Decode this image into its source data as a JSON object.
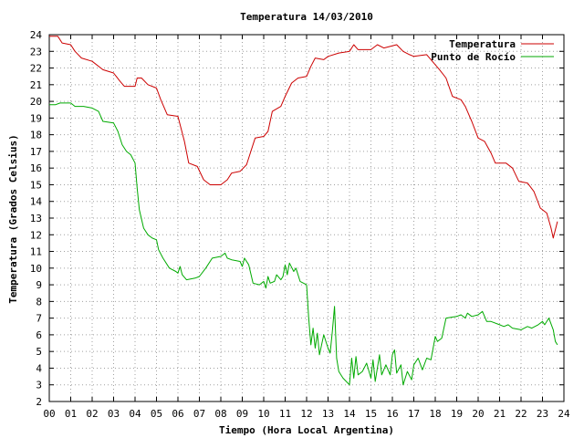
{
  "chart_data": {
    "type": "line",
    "title": "Temperatura 14/03/2010",
    "xlabel": "Tiempo (Hora Local Argentina)",
    "ylabel": "Temperatura (Grados Celsius)",
    "xlim": [
      0,
      24
    ],
    "ylim": [
      2,
      24
    ],
    "x_ticks": [
      "00",
      "01",
      "02",
      "03",
      "04",
      "05",
      "06",
      "07",
      "08",
      "09",
      "10",
      "11",
      "12",
      "13",
      "14",
      "15",
      "16",
      "17",
      "18",
      "19",
      "20",
      "21",
      "22",
      "23",
      "24"
    ],
    "y_ticks": [
      "2",
      "3",
      "4",
      "5",
      "6",
      "7",
      "8",
      "9",
      "10",
      "11",
      "12",
      "13",
      "14",
      "15",
      "16",
      "17",
      "18",
      "19",
      "20",
      "21",
      "22",
      "23",
      "24"
    ],
    "grid": true,
    "legend_position": "top-right",
    "series": [
      {
        "name": "Temperatura",
        "color": "#cc0000",
        "points": [
          [
            0.0,
            23.9
          ],
          [
            0.4,
            23.9
          ],
          [
            0.6,
            23.5
          ],
          [
            1.0,
            23.4
          ],
          [
            1.2,
            23.0
          ],
          [
            1.5,
            22.6
          ],
          [
            2.0,
            22.4
          ],
          [
            2.5,
            21.9
          ],
          [
            3.0,
            21.7
          ],
          [
            3.3,
            21.2
          ],
          [
            3.5,
            20.9
          ],
          [
            4.0,
            20.9
          ],
          [
            4.1,
            21.4
          ],
          [
            4.3,
            21.4
          ],
          [
            4.6,
            21.0
          ],
          [
            5.0,
            20.8
          ],
          [
            5.2,
            20.1
          ],
          [
            5.5,
            19.2
          ],
          [
            6.0,
            19.1
          ],
          [
            6.3,
            17.6
          ],
          [
            6.5,
            16.3
          ],
          [
            6.9,
            16.1
          ],
          [
            7.2,
            15.3
          ],
          [
            7.5,
            15.0
          ],
          [
            8.0,
            15.0
          ],
          [
            8.3,
            15.3
          ],
          [
            8.5,
            15.7
          ],
          [
            8.9,
            15.8
          ],
          [
            9.2,
            16.2
          ],
          [
            9.4,
            17.0
          ],
          [
            9.6,
            17.8
          ],
          [
            10.0,
            17.9
          ],
          [
            10.2,
            18.2
          ],
          [
            10.4,
            19.4
          ],
          [
            10.8,
            19.7
          ],
          [
            11.0,
            20.3
          ],
          [
            11.3,
            21.1
          ],
          [
            11.6,
            21.4
          ],
          [
            12.0,
            21.5
          ],
          [
            12.2,
            22.1
          ],
          [
            12.4,
            22.6
          ],
          [
            12.8,
            22.5
          ],
          [
            13.0,
            22.7
          ],
          [
            13.5,
            22.9
          ],
          [
            14.0,
            23.0
          ],
          [
            14.2,
            23.4
          ],
          [
            14.4,
            23.1
          ],
          [
            15.0,
            23.1
          ],
          [
            15.3,
            23.4
          ],
          [
            15.6,
            23.2
          ],
          [
            16.2,
            23.4
          ],
          [
            16.5,
            23.0
          ],
          [
            16.8,
            22.8
          ],
          [
            17.0,
            22.7
          ],
          [
            17.6,
            22.8
          ],
          [
            18.0,
            22.2
          ],
          [
            18.2,
            21.9
          ],
          [
            18.5,
            21.4
          ],
          [
            18.8,
            20.3
          ],
          [
            19.2,
            20.1
          ],
          [
            19.4,
            19.7
          ],
          [
            19.7,
            18.8
          ],
          [
            20.0,
            17.8
          ],
          [
            20.3,
            17.6
          ],
          [
            20.6,
            16.9
          ],
          [
            20.8,
            16.3
          ],
          [
            21.3,
            16.3
          ],
          [
            21.6,
            16.0
          ],
          [
            21.9,
            15.2
          ],
          [
            22.3,
            15.1
          ],
          [
            22.6,
            14.6
          ],
          [
            22.9,
            13.6
          ],
          [
            23.2,
            13.3
          ],
          [
            23.4,
            12.4
          ],
          [
            23.5,
            11.8
          ],
          [
            23.7,
            12.8
          ]
        ]
      },
      {
        "name": "Punto de Rocío",
        "color": "#00aa00",
        "points": [
          [
            0.0,
            19.8
          ],
          [
            0.3,
            19.8
          ],
          [
            0.5,
            19.9
          ],
          [
            1.0,
            19.9
          ],
          [
            1.2,
            19.7
          ],
          [
            1.6,
            19.7
          ],
          [
            2.0,
            19.6
          ],
          [
            2.3,
            19.4
          ],
          [
            2.5,
            18.8
          ],
          [
            3.0,
            18.7
          ],
          [
            3.2,
            18.2
          ],
          [
            3.4,
            17.4
          ],
          [
            3.6,
            17.0
          ],
          [
            3.8,
            16.8
          ],
          [
            4.0,
            16.3
          ],
          [
            4.1,
            14.8
          ],
          [
            4.2,
            13.5
          ],
          [
            4.4,
            12.4
          ],
          [
            4.6,
            12.0
          ],
          [
            4.8,
            11.8
          ],
          [
            5.0,
            11.7
          ],
          [
            5.1,
            11.1
          ],
          [
            5.3,
            10.6
          ],
          [
            5.6,
            10.0
          ],
          [
            5.9,
            9.8
          ],
          [
            6.0,
            9.7
          ],
          [
            6.1,
            10.1
          ],
          [
            6.2,
            9.6
          ],
          [
            6.4,
            9.3
          ],
          [
            6.8,
            9.4
          ],
          [
            7.0,
            9.5
          ],
          [
            7.3,
            10.0
          ],
          [
            7.6,
            10.6
          ],
          [
            8.0,
            10.7
          ],
          [
            8.2,
            10.9
          ],
          [
            8.3,
            10.6
          ],
          [
            8.5,
            10.5
          ],
          [
            8.9,
            10.4
          ],
          [
            9.0,
            10.1
          ],
          [
            9.1,
            10.6
          ],
          [
            9.3,
            10.2
          ],
          [
            9.5,
            9.1
          ],
          [
            9.8,
            9.0
          ],
          [
            10.0,
            9.2
          ],
          [
            10.1,
            8.8
          ],
          [
            10.2,
            9.5
          ],
          [
            10.3,
            9.1
          ],
          [
            10.5,
            9.2
          ],
          [
            10.6,
            9.6
          ],
          [
            10.8,
            9.3
          ],
          [
            10.9,
            9.5
          ],
          [
            11.0,
            10.2
          ],
          [
            11.1,
            9.6
          ],
          [
            11.2,
            10.3
          ],
          [
            11.4,
            9.8
          ],
          [
            11.5,
            10.0
          ],
          [
            11.7,
            9.2
          ],
          [
            12.0,
            9.0
          ],
          [
            12.1,
            7.0
          ],
          [
            12.2,
            5.4
          ],
          [
            12.3,
            6.4
          ],
          [
            12.4,
            5.2
          ],
          [
            12.5,
            6.1
          ],
          [
            12.6,
            4.8
          ],
          [
            12.8,
            6.0
          ],
          [
            13.0,
            5.2
          ],
          [
            13.1,
            4.9
          ],
          [
            13.2,
            6.2
          ],
          [
            13.3,
            7.7
          ],
          [
            13.4,
            4.6
          ],
          [
            13.5,
            3.8
          ],
          [
            13.7,
            3.4
          ],
          [
            14.0,
            3.0
          ],
          [
            14.1,
            4.6
          ],
          [
            14.2,
            3.4
          ],
          [
            14.3,
            4.7
          ],
          [
            14.4,
            3.6
          ],
          [
            14.6,
            3.8
          ],
          [
            14.8,
            4.3
          ],
          [
            15.0,
            3.4
          ],
          [
            15.1,
            4.5
          ],
          [
            15.2,
            3.2
          ],
          [
            15.4,
            4.8
          ],
          [
            15.5,
            3.6
          ],
          [
            15.7,
            4.2
          ],
          [
            15.9,
            3.6
          ],
          [
            16.0,
            4.8
          ],
          [
            16.1,
            5.1
          ],
          [
            16.2,
            3.7
          ],
          [
            16.4,
            4.2
          ],
          [
            16.5,
            3.0
          ],
          [
            16.7,
            3.8
          ],
          [
            16.9,
            3.3
          ],
          [
            17.0,
            4.2
          ],
          [
            17.2,
            4.6
          ],
          [
            17.4,
            3.9
          ],
          [
            17.6,
            4.6
          ],
          [
            17.8,
            4.5
          ],
          [
            18.0,
            5.9
          ],
          [
            18.1,
            5.6
          ],
          [
            18.3,
            5.8
          ],
          [
            18.5,
            7.0
          ],
          [
            19.0,
            7.1
          ],
          [
            19.2,
            7.2
          ],
          [
            19.4,
            7.0
          ],
          [
            19.5,
            7.3
          ],
          [
            19.7,
            7.1
          ],
          [
            20.0,
            7.2
          ],
          [
            20.2,
            7.4
          ],
          [
            20.4,
            6.8
          ],
          [
            20.6,
            6.8
          ],
          [
            21.0,
            6.6
          ],
          [
            21.2,
            6.5
          ],
          [
            21.4,
            6.6
          ],
          [
            21.6,
            6.4
          ],
          [
            22.0,
            6.3
          ],
          [
            22.3,
            6.5
          ],
          [
            22.5,
            6.4
          ],
          [
            22.8,
            6.6
          ],
          [
            23.0,
            6.8
          ],
          [
            23.1,
            6.6
          ],
          [
            23.3,
            7.0
          ],
          [
            23.5,
            6.3
          ],
          [
            23.6,
            5.6
          ],
          [
            23.7,
            5.4
          ]
        ]
      }
    ]
  }
}
